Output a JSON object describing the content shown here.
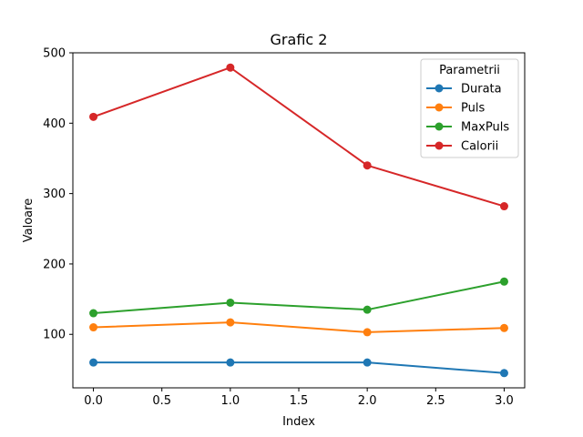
{
  "chart_data": {
    "type": "line",
    "title": "Grafic 2",
    "xlabel": "Index",
    "ylabel": "Valoare",
    "x": [
      0,
      1,
      2,
      3
    ],
    "xlim": [
      -0.15,
      3.15
    ],
    "ylim": [
      24,
      500
    ],
    "xticks": [
      "0.0",
      "0.5",
      "1.0",
      "1.5",
      "2.0",
      "2.5",
      "3.0"
    ],
    "yticks": [
      "100",
      "200",
      "300",
      "400",
      "500"
    ],
    "grid": false,
    "legend": {
      "title": "Parametrii",
      "placement": "top-right"
    },
    "series": [
      {
        "name": "Durata",
        "color": "#1f77b4",
        "values": [
          60,
          60,
          60,
          45
        ]
      },
      {
        "name": "Puls",
        "color": "#ff7f0e",
        "values": [
          110,
          117,
          103,
          109
        ]
      },
      {
        "name": "MaxPuls",
        "color": "#2ca02c",
        "values": [
          130,
          145,
          135,
          175
        ]
      },
      {
        "name": "Calorii",
        "color": "#d62728",
        "values": [
          409,
          479,
          340,
          282
        ]
      }
    ]
  }
}
